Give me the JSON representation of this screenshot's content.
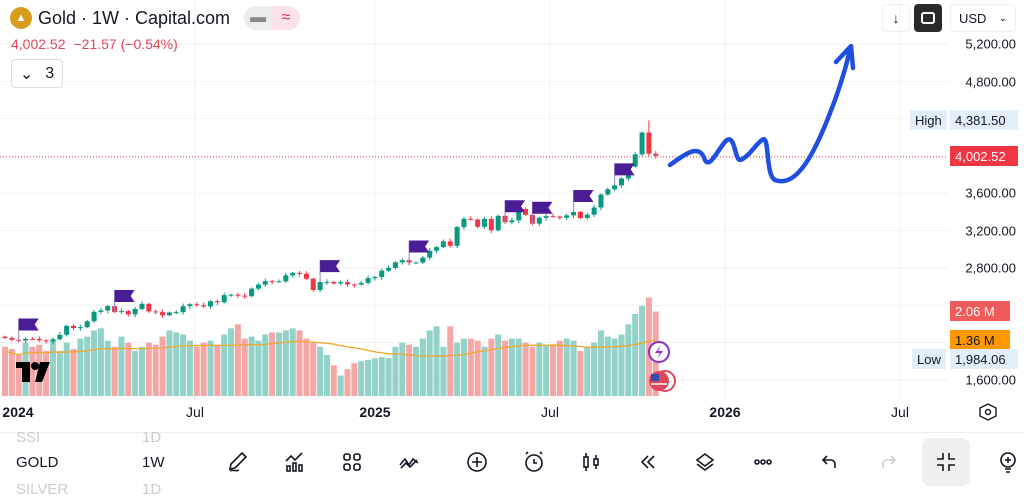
{
  "header": {
    "title": "Gold · 1W · Capital.com",
    "price": "4,002.52",
    "change": "−21.57 (−0.54%)",
    "indicator_count": "3",
    "currency": "USD"
  },
  "price_axis": {
    "ticks": [
      "5,200.00",
      "4,800.00",
      "3,600.00",
      "3,200.00",
      "2,800.00",
      "1,600.00"
    ],
    "high_label": "High",
    "high_value": "4,381.50",
    "last_value": "4,002.52",
    "low_label": "Low",
    "low_value": "1,984.06",
    "volume_value": "2.06 M",
    "volume_ma_value": "1.36 M"
  },
  "time_axis": {
    "ticks": [
      "2024",
      "Jul",
      "2025",
      "Jul",
      "2026",
      "Jul"
    ]
  },
  "colors": {
    "up": "#089981",
    "down": "#f23645",
    "vol_up": "#92d2c9",
    "vol_down": "#f5a7a7",
    "ma": "#f0a830",
    "drawing": "#1e4fe0",
    "flag": "#4a1d96"
  },
  "chart_data": {
    "type": "candlestick",
    "interval": "1W",
    "start": "2024-01-01",
    "close": [
      2049,
      2029,
      2022,
      2040,
      2039,
      2024,
      2013,
      2035,
      2083,
      2179,
      2155,
      2165,
      2229,
      2329,
      2344,
      2391,
      2327,
      2337,
      2302,
      2360,
      2415,
      2334,
      2326,
      2293,
      2322,
      2326,
      2390,
      2411,
      2400,
      2387,
      2443,
      2431,
      2508,
      2513,
      2503,
      2497,
      2578,
      2621,
      2658,
      2653,
      2656,
      2720,
      2747,
      2737,
      2684,
      2563,
      2648,
      2650,
      2633,
      2648,
      2622,
      2621,
      2640,
      2690,
      2703,
      2770,
      2800,
      2860,
      2883,
      2858,
      2858,
      2910,
      2984,
      3023,
      3085,
      3037,
      3238,
      3327,
      3319,
      3241,
      3325,
      3204,
      3358,
      3290,
      3310,
      3432,
      3368,
      3274,
      3337,
      3355,
      3350,
      3337,
      3363,
      3400,
      3335,
      3371,
      3447,
      3586,
      3643,
      3685,
      3759,
      3886,
      4017,
      4251,
      4024,
      4002.52
    ],
    "volume_m": [
      1.2,
      1.15,
      1.0,
      1.3,
      1.2,
      1.25,
      1.1,
      1.35,
      1.1,
      1.3,
      1.15,
      1.4,
      1.45,
      1.6,
      1.65,
      1.35,
      1.2,
      1.45,
      1.3,
      1.1,
      1.2,
      1.3,
      1.25,
      1.45,
      1.6,
      1.55,
      1.5,
      1.35,
      1.2,
      1.3,
      1.35,
      1.25,
      1.5,
      1.65,
      1.75,
      1.4,
      1.45,
      1.35,
      1.5,
      1.55,
      1.55,
      1.6,
      1.65,
      1.6,
      1.4,
      1.3,
      1.2,
      1.0,
      0.75,
      0.5,
      0.65,
      0.8,
      0.85,
      0.88,
      0.92,
      0.95,
      0.93,
      1.2,
      1.3,
      1.25,
      1.2,
      1.4,
      1.6,
      1.7,
      1.2,
      1.7,
      1.3,
      1.4,
      1.4,
      1.35,
      1.2,
      1.4,
      1.5,
      1.35,
      1.4,
      1.4,
      1.3,
      1.2,
      1.3,
      1.25,
      1.25,
      1.35,
      1.4,
      1.35,
      1.1,
      1.2,
      1.3,
      1.6,
      1.45,
      1.4,
      1.5,
      1.75,
      2.0,
      2.2,
      2.4,
      2.06
    ],
    "ylim": [
      1600,
      5200
    ]
  },
  "watchlist": [
    {
      "symbol": "SSI",
      "interval": "1D"
    },
    {
      "symbol": "GOLD",
      "interval": "1W"
    },
    {
      "symbol": "SILVER",
      "interval": "1D"
    }
  ],
  "toolbar": [
    "pencil-icon",
    "indicators-icon",
    "layouts-icon",
    "patterns-icon",
    "add-icon",
    "alert-icon",
    "candles-icon",
    "replay-icon",
    "layers-icon",
    "more-icon",
    "undo-icon",
    "redo-icon",
    "collapse-icon",
    "idea-icon"
  ]
}
